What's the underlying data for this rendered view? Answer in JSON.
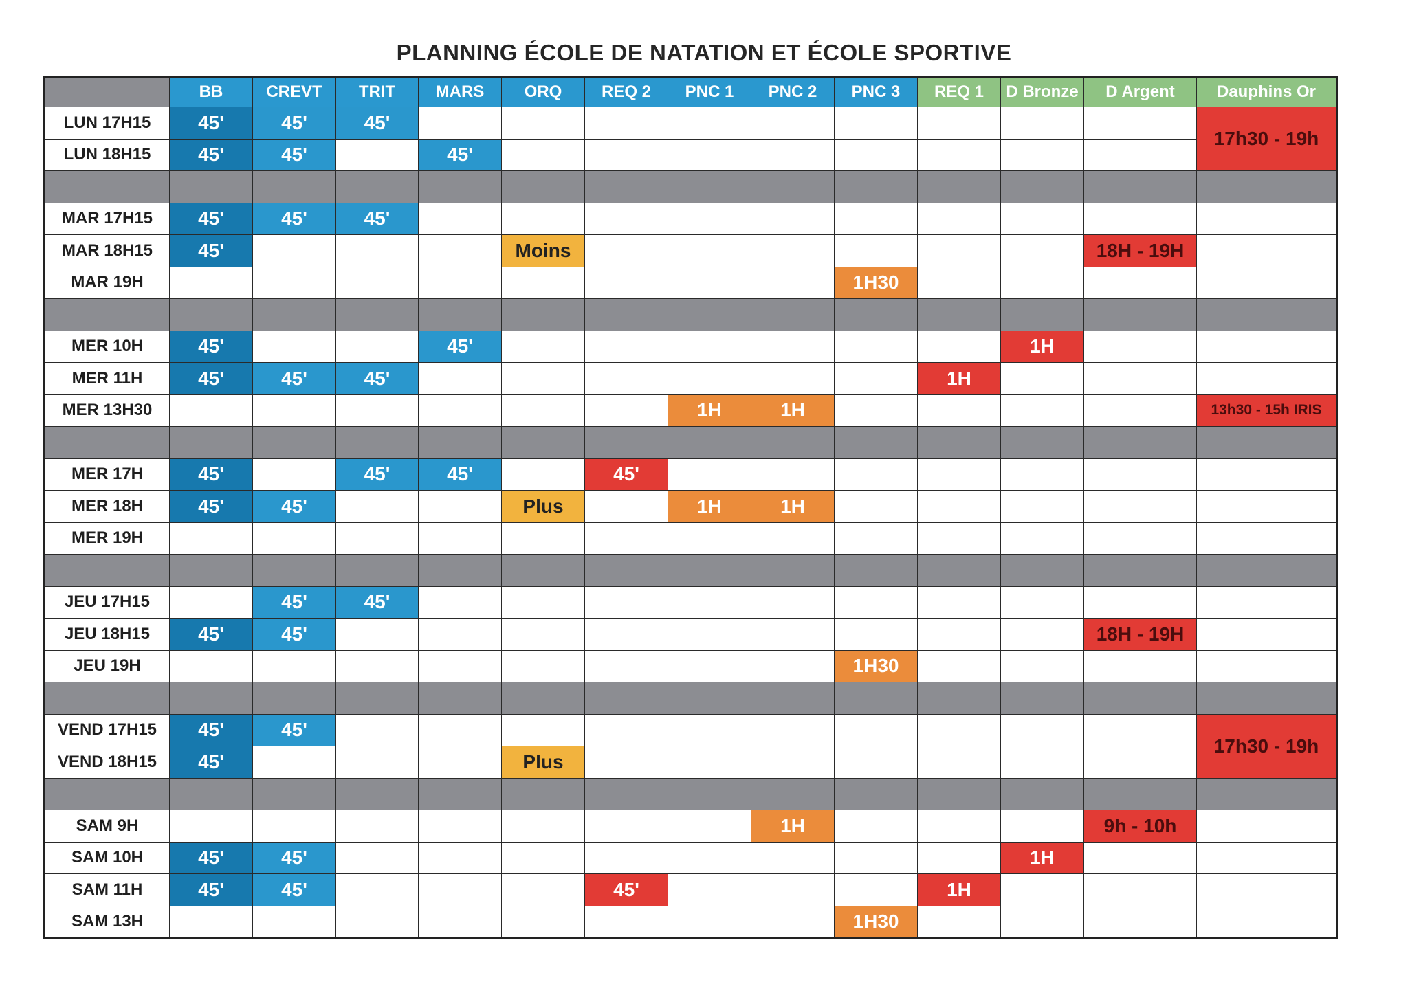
{
  "title": "PLANNING ÉCOLE DE NATATION ET ÉCOLE SPORTIVE",
  "columns": [
    "BB",
    "CREVT",
    "TRIT",
    "MARS",
    "ORQ",
    "REQ 2",
    "PNC 1",
    "PNC 2",
    "PNC 3",
    "REQ 1",
    "D Bronze",
    "D Argent",
    "Dauphins Or"
  ],
  "cells": {
    "lun17_bb": "45'",
    "lun17_crevt": "45'",
    "lun17_trit": "45'",
    "lun_dauphins": "17h30 - 19h",
    "lun18_bb": "45'",
    "lun18_crevt": "45'",
    "lun18_mars": "45'",
    "mar17_bb": "45'",
    "mar17_crevt": "45'",
    "mar17_trit": "45'",
    "mar18_bb": "45'",
    "mar18_orq": "Moins",
    "mar18_argent": "18H - 19H",
    "mar19_pnc3": "1H30",
    "mer10_bb": "45'",
    "mer10_mars": "45'",
    "mer10_bronze": "1H",
    "mer11_bb": "45'",
    "mer11_crevt": "45'",
    "mer11_trit": "45'",
    "mer11_req1": "1H",
    "mer1330_pnc1": "1H",
    "mer1330_pnc2": "1H",
    "mer1330_dauphins": "13h30 - 15h IRIS",
    "mer17_bb": "45'",
    "mer17_trit": "45'",
    "mer17_mars": "45'",
    "mer17_req2": "45'",
    "mer18_bb": "45'",
    "mer18_crevt": "45'",
    "mer18_orq": "Plus",
    "mer18_pnc1": "1H",
    "mer18_pnc2": "1H",
    "jeu17_crevt": "45'",
    "jeu17_trit": "45'",
    "jeu18_bb": "45'",
    "jeu18_crevt": "45'",
    "jeu18_argent": "18H - 19H",
    "jeu19_pnc3": "1H30",
    "ven17_bb": "45'",
    "ven17_crevt": "45'",
    "ven_dauphins": "17h30 - 19h",
    "ven18_bb": "45'",
    "ven18_orq": "Plus",
    "sam9_pnc2": "1H",
    "sam9_argent": "9h - 10h",
    "sam10_bb": "45'",
    "sam10_crevt": "45'",
    "sam10_bronze": "1H",
    "sam11_bb": "45'",
    "sam11_crevt": "45'",
    "sam11_req2": "45'",
    "sam11_req1": "1H",
    "sam13_pnc3": "1H30"
  },
  "rows": [
    {
      "label": "LUN 17H15",
      "group_start": true,
      "cells": [
        [
          "dblue",
          "lun17_bb"
        ],
        [
          "blue",
          "lun17_crevt"
        ],
        [
          "blue",
          "lun17_trit"
        ],
        null,
        null,
        null,
        null,
        null,
        null,
        null,
        null,
        null,
        [
          "red",
          "lun_dauphins",
          2
        ]
      ]
    },
    {
      "label": "LUN 18H15",
      "group_end": true,
      "cells": [
        [
          "dblue",
          "lun18_bb"
        ],
        [
          "blue",
          "lun18_crevt"
        ],
        null,
        [
          "blue",
          "lun18_mars"
        ],
        null,
        null,
        null,
        null,
        null,
        null,
        null,
        null,
        "skip"
      ]
    },
    {
      "gap": true
    },
    {
      "label": "MAR 17H15",
      "group_start": true,
      "cells": [
        [
          "dblue",
          "mar17_bb"
        ],
        [
          "blue",
          "mar17_crevt"
        ],
        [
          "blue",
          "mar17_trit"
        ],
        null,
        null,
        null,
        null,
        null,
        null,
        null,
        null,
        null,
        null
      ]
    },
    {
      "label": "MAR 18H15",
      "cells": [
        [
          "dblue",
          "mar18_bb"
        ],
        null,
        null,
        null,
        [
          "gold",
          "mar18_orq"
        ],
        null,
        null,
        null,
        null,
        null,
        null,
        [
          "red",
          "mar18_argent"
        ],
        null
      ]
    },
    {
      "label": "MAR 19H",
      "group_end": true,
      "cells": [
        null,
        null,
        null,
        null,
        null,
        null,
        null,
        null,
        [
          "orange",
          "mar19_pnc3"
        ],
        null,
        null,
        null,
        null
      ]
    },
    {
      "gap": true
    },
    {
      "label": "MER 10H",
      "group_start": true,
      "cells": [
        [
          "dblue",
          "mer10_bb"
        ],
        null,
        null,
        [
          "blue",
          "mer10_mars"
        ],
        null,
        null,
        null,
        null,
        null,
        null,
        [
          "redw",
          "mer10_bronze"
        ],
        null,
        null
      ]
    },
    {
      "label": "MER 11H",
      "cells": [
        [
          "dblue",
          "mer11_bb"
        ],
        [
          "blue",
          "mer11_crevt"
        ],
        [
          "blue",
          "mer11_trit"
        ],
        null,
        null,
        null,
        null,
        null,
        null,
        [
          "redw",
          "mer11_req1"
        ],
        null,
        null,
        null
      ]
    },
    {
      "label": "MER 13H30",
      "group_end": true,
      "cells": [
        null,
        null,
        null,
        null,
        null,
        null,
        [
          "orange",
          "mer1330_pnc1"
        ],
        [
          "orange",
          "mer1330_pnc2"
        ],
        null,
        null,
        null,
        null,
        [
          "red small",
          "mer1330_dauphins"
        ]
      ]
    },
    {
      "gap": true
    },
    {
      "label": "MER 17H",
      "group_start": true,
      "cells": [
        [
          "dblue",
          "mer17_bb"
        ],
        null,
        [
          "blue",
          "mer17_trit"
        ],
        [
          "blue",
          "mer17_mars"
        ],
        null,
        [
          "redw",
          "mer17_req2"
        ],
        null,
        null,
        null,
        null,
        null,
        null,
        null
      ]
    },
    {
      "label": "MER 18H",
      "cells": [
        [
          "dblue",
          "mer18_bb"
        ],
        [
          "blue",
          "mer18_crevt"
        ],
        null,
        null,
        [
          "gold",
          "mer18_orq"
        ],
        null,
        [
          "orange",
          "mer18_pnc1"
        ],
        [
          "orange",
          "mer18_pnc2"
        ],
        null,
        null,
        null,
        null,
        null
      ]
    },
    {
      "label": "MER 19H",
      "group_end": true,
      "cells": [
        null,
        null,
        null,
        null,
        null,
        null,
        null,
        null,
        null,
        null,
        null,
        null,
        null
      ]
    },
    {
      "gap": true
    },
    {
      "label": "JEU 17H15",
      "group_start": true,
      "cells": [
        null,
        [
          "blue",
          "jeu17_crevt"
        ],
        [
          "blue",
          "jeu17_trit"
        ],
        null,
        null,
        null,
        null,
        null,
        null,
        null,
        null,
        null,
        null
      ]
    },
    {
      "label": "JEU 18H15",
      "cells": [
        [
          "dblue",
          "jeu18_bb"
        ],
        [
          "blue",
          "jeu18_crevt"
        ],
        null,
        null,
        null,
        null,
        null,
        null,
        null,
        null,
        null,
        [
          "red",
          "jeu18_argent"
        ],
        null
      ]
    },
    {
      "label": "JEU 19H",
      "group_end": true,
      "cells": [
        null,
        null,
        null,
        null,
        null,
        null,
        null,
        null,
        [
          "orange",
          "jeu19_pnc3"
        ],
        null,
        null,
        null,
        null
      ]
    },
    {
      "gap": true
    },
    {
      "label": "VEND 17H15",
      "group_start": true,
      "cells": [
        [
          "dblue",
          "ven17_bb"
        ],
        [
          "blue",
          "ven17_crevt"
        ],
        null,
        null,
        null,
        null,
        null,
        null,
        null,
        null,
        null,
        null,
        [
          "red",
          "ven_dauphins",
          2
        ]
      ]
    },
    {
      "label": "VEND 18H15",
      "group_end": true,
      "cells": [
        [
          "dblue",
          "ven18_bb"
        ],
        null,
        null,
        null,
        [
          "gold",
          "ven18_orq"
        ],
        null,
        null,
        null,
        null,
        null,
        null,
        null,
        "skip"
      ]
    },
    {
      "gap": true
    },
    {
      "label": "SAM 9H",
      "group_start": true,
      "cells": [
        null,
        null,
        null,
        null,
        null,
        null,
        null,
        [
          "orange",
          "sam9_pnc2"
        ],
        null,
        null,
        null,
        [
          "red",
          "sam9_argent"
        ],
        null
      ]
    },
    {
      "label": "SAM 10H",
      "cells": [
        [
          "dblue",
          "sam10_bb"
        ],
        [
          "blue",
          "sam10_crevt"
        ],
        null,
        null,
        null,
        null,
        null,
        null,
        null,
        null,
        [
          "redw",
          "sam10_bronze"
        ],
        null,
        null
      ]
    },
    {
      "label": "SAM 11H",
      "cells": [
        [
          "dblue",
          "sam11_bb"
        ],
        [
          "blue",
          "sam11_crevt"
        ],
        null,
        null,
        null,
        [
          "redw",
          "sam11_req2"
        ],
        null,
        null,
        null,
        [
          "redw",
          "sam11_req1"
        ],
        null,
        null,
        null
      ]
    },
    {
      "label": "SAM 13H",
      "group_end": true,
      "cells": [
        null,
        null,
        null,
        null,
        null,
        null,
        null,
        null,
        [
          "orange",
          "sam13_pnc3"
        ],
        null,
        null,
        null,
        null
      ]
    }
  ]
}
